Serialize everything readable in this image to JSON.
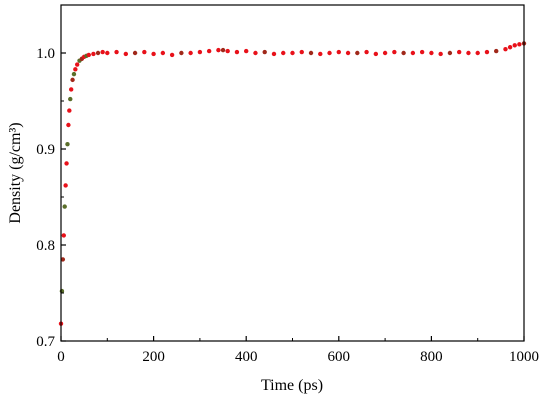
{
  "chart_data": {
    "type": "scatter",
    "xlabel": "Time (ps)",
    "ylabel": "Density (g/cm³)",
    "xlim": [
      0,
      1000
    ],
    "ylim": [
      0.7,
      1.05
    ],
    "x_ticks": [
      0,
      200,
      400,
      600,
      800,
      1000
    ],
    "x_tick_labels": [
      "0",
      "200",
      "400",
      "600",
      "800",
      "1000"
    ],
    "y_ticks": [
      0.7,
      0.8,
      0.9,
      1.0
    ],
    "y_tick_labels": [
      "0.7",
      "0.8",
      "0.9",
      "1.0"
    ],
    "grid": false,
    "legend": "none",
    "marker_colors": [
      "#e8111a",
      "#a0281a",
      "#5a6e2a"
    ],
    "series": [
      {
        "x": [
          0,
          2,
          4,
          6,
          8,
          10,
          12,
          14,
          16,
          18,
          20,
          22,
          25,
          28,
          31,
          35,
          40,
          45,
          50,
          55,
          60,
          70,
          80,
          90,
          100,
          120,
          140,
          160,
          180,
          200,
          220,
          240,
          260,
          280,
          300,
          320,
          340,
          350,
          360,
          380,
          400,
          420,
          440,
          460,
          480,
          500,
          520,
          540,
          560,
          580,
          600,
          620,
          640,
          660,
          680,
          700,
          720,
          740,
          760,
          780,
          800,
          820,
          840,
          860,
          880,
          900,
          920,
          940,
          960,
          970,
          980,
          990,
          1000
        ],
        "y": [
          0.718,
          0.752,
          0.785,
          0.81,
          0.84,
          0.862,
          0.885,
          0.905,
          0.925,
          0.94,
          0.952,
          0.962,
          0.972,
          0.978,
          0.983,
          0.988,
          0.992,
          0.994,
          0.996,
          0.997,
          0.998,
          0.999,
          1.0,
          1.001,
          1.0,
          1.001,
          0.999,
          1.0,
          1.001,
          0.999,
          1.0,
          0.998,
          1.0,
          1.0,
          1.001,
          1.002,
          1.003,
          1.003,
          1.002,
          1.001,
          1.002,
          1.0,
          1.001,
          0.999,
          1.0,
          1.0,
          1.001,
          1.0,
          0.999,
          1.0,
          1.001,
          1.0,
          1.0,
          1.001,
          0.999,
          1.0,
          1.001,
          1.0,
          1.0,
          1.001,
          1.0,
          0.999,
          1.0,
          1.001,
          1.0,
          1.0,
          1.001,
          1.002,
          1.004,
          1.006,
          1.008,
          1.009,
          1.01
        ]
      }
    ]
  }
}
